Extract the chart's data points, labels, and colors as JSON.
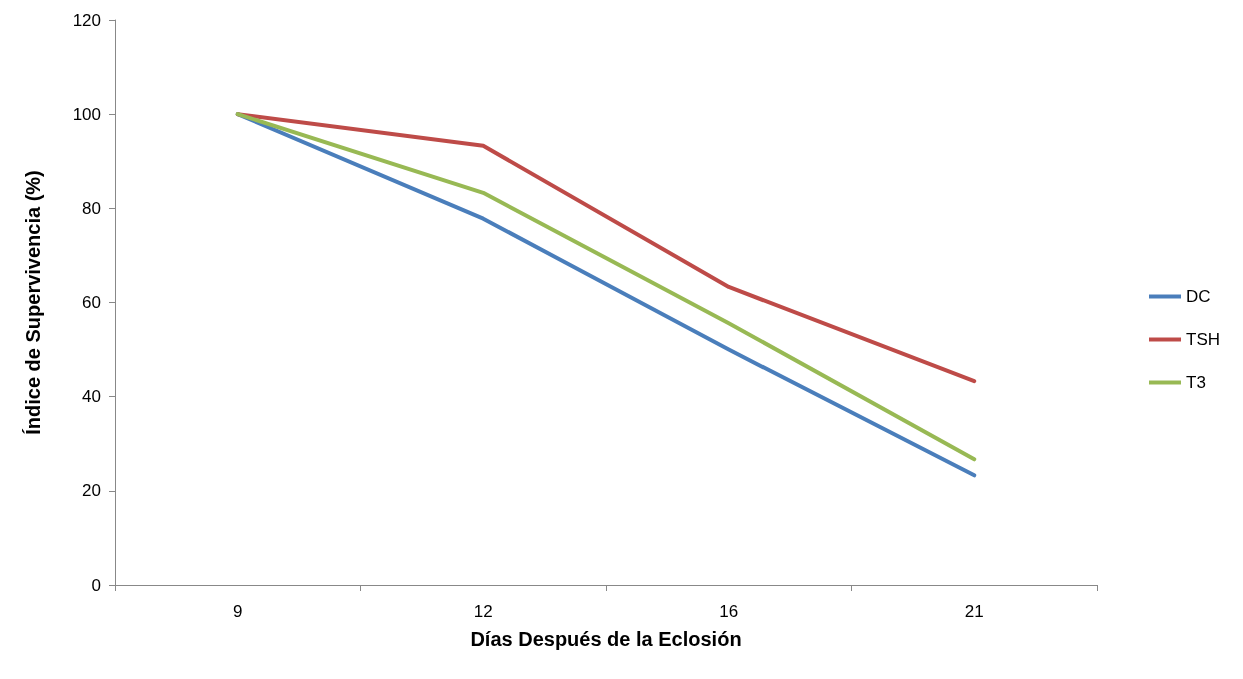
{
  "chart_data": {
    "type": "line",
    "xlabel": "Días Después de la Eclosión",
    "ylabel": "Índice de Supervivencia (%)",
    "categories": [
      "9",
      "12",
      "16",
      "21"
    ],
    "series": [
      {
        "name": "DC",
        "color": "#4a7ebb",
        "values": [
          100,
          77.8,
          50,
          23.3
        ]
      },
      {
        "name": "TSH",
        "color": "#be4b48",
        "values": [
          100,
          93.3,
          63.3,
          43.3
        ]
      },
      {
        "name": "T3",
        "color": "#98b954",
        "values": [
          100,
          83.3,
          55.6,
          26.7
        ]
      }
    ],
    "ylim": [
      0,
      120
    ],
    "yticks": [
      0,
      20,
      40,
      60,
      80,
      100,
      120
    ],
    "grid": false,
    "legend": "right",
    "marker": "none",
    "line_style": "solid"
  }
}
